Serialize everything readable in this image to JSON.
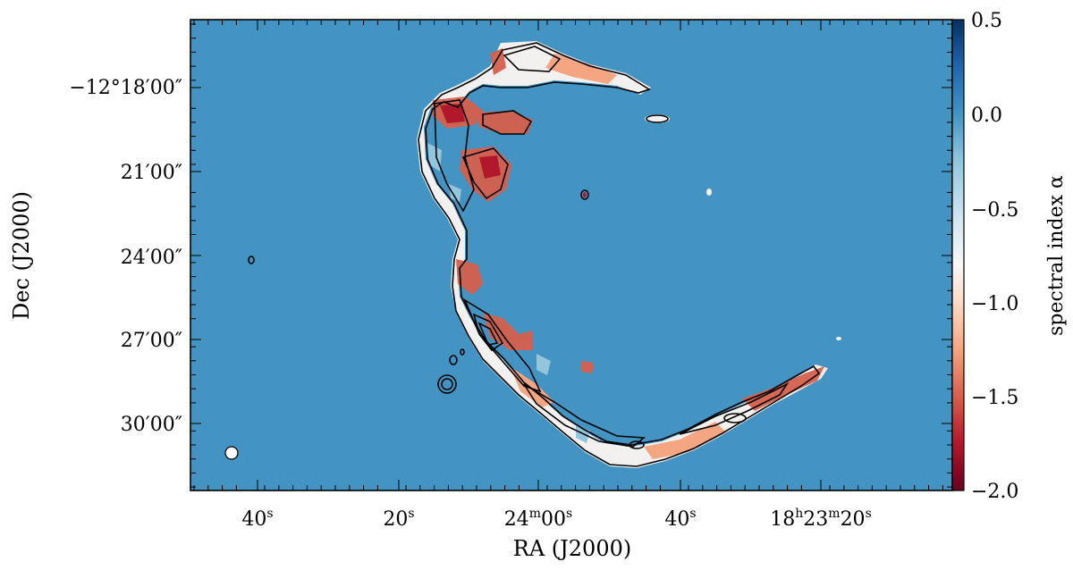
{
  "chart_data": {
    "type": "heatmap",
    "title": "",
    "xlabel": "RA (J2000)",
    "ylabel": "Dec (J2000)",
    "colorbar": {
      "label": "spectral index α",
      "range": [
        -2.0,
        0.5
      ],
      "ticks": [
        "0.5",
        "0.0",
        "−0.5",
        "−1.0",
        "−1.5",
        "−2.0"
      ],
      "tick_values": [
        0.5,
        0.0,
        -0.5,
        -1.0,
        -1.5,
        -2.0
      ],
      "colors": [
        "#67001f",
        "#b2182b",
        "#d6604d",
        "#f4a582",
        "#fddbc7",
        "#f7f7f7",
        "#d1e5f0",
        "#92c5de",
        "#4393c3",
        "#2166ac",
        "#053061"
      ]
    },
    "x_ticks": [
      {
        "main": "40",
        "sup": "s"
      },
      {
        "main": "20",
        "sup": "s"
      },
      {
        "main": "24",
        "sup": "m",
        "main2": "00",
        "sup2": "s"
      },
      {
        "main": "40",
        "sup": "s"
      },
      {
        "main": "18",
        "sup": "h",
        "main2": "23",
        "sup2": "m",
        "main3": "20",
        "sup3": "s"
      }
    ],
    "y_ticks": [
      "−12°18′00″",
      "21′00″",
      "24′00″",
      "27′00″",
      "30′00″"
    ],
    "background_color": "#4393c3",
    "beam": "ellipse, lower-left"
  }
}
